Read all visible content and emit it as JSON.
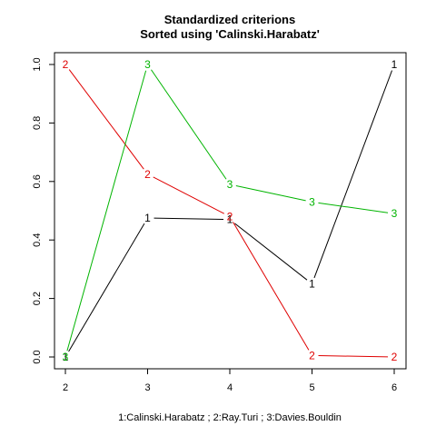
{
  "chart_data": {
    "type": "line",
    "title": "Standardized criterions",
    "subtitle": "Sorted using 'Calinski.Harabatz'",
    "xlabel": "1:Calinski.Harabatz ; 2:Ray.Turi ; 3:Davies.Bouldin",
    "ylabel": "",
    "xlim": [
      2,
      6
    ],
    "ylim": [
      0,
      1
    ],
    "x": [
      2,
      3,
      4,
      5,
      6
    ],
    "x_ticks": [
      "2",
      "3",
      "4",
      "5",
      "6"
    ],
    "y_ticks": [
      "0.0",
      "0.2",
      "0.4",
      "0.6",
      "0.8",
      "1.0"
    ],
    "y_tick_values": [
      0,
      0.2,
      0.4,
      0.6,
      0.8,
      1.0
    ],
    "grid": false,
    "legend": "none",
    "series": [
      {
        "marker": "1",
        "color": "#000000",
        "values": [
          0.0,
          0.475,
          0.47,
          0.25,
          1.0
        ]
      },
      {
        "marker": "2",
        "color": "#df0000",
        "values": [
          1.0,
          0.625,
          0.48,
          0.005,
          0.0
        ]
      },
      {
        "marker": "3",
        "color": "#00b400",
        "values": [
          0.0,
          1.0,
          0.59,
          0.53,
          0.49
        ]
      }
    ]
  }
}
